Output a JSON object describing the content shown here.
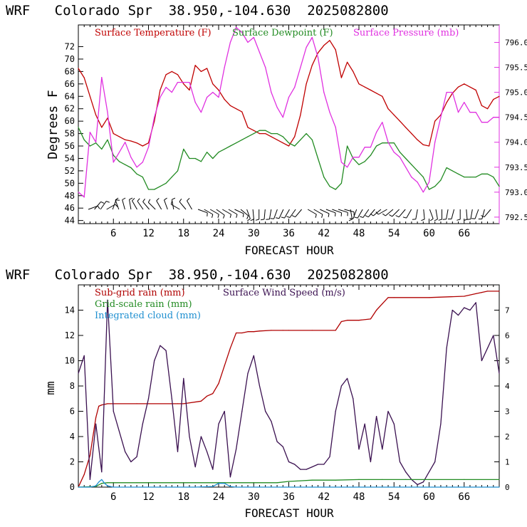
{
  "colors": {
    "temperature": "#c00000",
    "dewpoint": "#228b22",
    "pressure": "#e030e0",
    "subgrid_rain": "#b00000",
    "gridscale_rain": "#228b22",
    "cloud": "#1e8fd0",
    "wind_speed": "#3a1050",
    "axis": "#000000"
  },
  "chart_data": [
    {
      "type": "line",
      "title": "WRF   Colorado Spr  38.950,-104.630  2025082800",
      "xlabel": "FORECAST HOUR",
      "ylabel": "Degrees F",
      "xlim": [
        0,
        72
      ],
      "ylim": [
        43.5,
        75.5
      ],
      "y2lim": [
        792.37,
        796.35
      ],
      "x_ticks": [
        6,
        12,
        18,
        24,
        30,
        36,
        42,
        48,
        54,
        60,
        66
      ],
      "x_tick_labels": [
        "6",
        "12",
        "18",
        "24",
        "30",
        "36",
        "42",
        "48",
        "54",
        "60",
        "66"
      ],
      "y_ticks": [
        44,
        46,
        48,
        50,
        52,
        54,
        56,
        58,
        60,
        62,
        64,
        66,
        68,
        70,
        72
      ],
      "y_tick_labels": [
        "44",
        "46",
        "48",
        "50",
        "52",
        "54",
        "56",
        "58",
        "60",
        "62",
        "64",
        "66",
        "68",
        "70",
        "72"
      ],
      "y2_ticks": [
        792.5,
        793.0,
        793.5,
        794.0,
        794.5,
        795.0,
        795.5,
        796.0
      ],
      "y2_tick_labels": [
        "792.5",
        "793.0",
        "793.5",
        "794.0",
        "794.5",
        "795.0",
        "795.5",
        "796.0"
      ],
      "legend": [
        "Surface Temperature (F)",
        "Surface Dewpoint (F)",
        "Surface Pressure (mb)"
      ],
      "series": [
        {
          "name": "Surface Temperature (F)",
          "axis": "left",
          "x": [
            0,
            1,
            2,
            3,
            4,
            5,
            6,
            7,
            8,
            9,
            10,
            11,
            12,
            13,
            14,
            15,
            16,
            17,
            18,
            19,
            20,
            21,
            22,
            23,
            24,
            25,
            26,
            27,
            28,
            29,
            30,
            31,
            32,
            33,
            34,
            35,
            36,
            37,
            38,
            39,
            40,
            41,
            42,
            43,
            44,
            45,
            46,
            47,
            48,
            49,
            50,
            51,
            52,
            53,
            54,
            55,
            56,
            57,
            58,
            59,
            60,
            61,
            62,
            63,
            64,
            65,
            66,
            67,
            68,
            69,
            70,
            71,
            72
          ],
          "values": [
            68.5,
            67,
            64,
            61,
            59,
            60.5,
            58,
            57.5,
            57,
            56.8,
            56.5,
            56,
            56.5,
            60,
            65,
            67.5,
            68,
            67.5,
            66,
            65,
            69,
            68,
            68.5,
            66,
            65,
            63.5,
            62.5,
            62,
            61.5,
            59,
            58.5,
            58,
            58,
            57.5,
            57,
            56.5,
            56,
            57.5,
            61,
            66,
            69,
            71,
            72.2,
            73,
            71.5,
            67,
            69.5,
            68,
            66,
            65.5,
            65,
            64.5,
            64,
            62,
            61,
            60,
            59,
            58,
            57,
            56.2,
            56,
            60,
            61,
            63,
            64.5,
            65.5,
            66,
            65.5,
            65,
            62.5,
            62,
            63.5,
            64
          ]
        },
        {
          "name": "Surface Dewpoint (F)",
          "axis": "left",
          "x": [
            0,
            1,
            2,
            3,
            4,
            5,
            6,
            7,
            8,
            9,
            10,
            11,
            12,
            13,
            14,
            15,
            16,
            17,
            18,
            19,
            20,
            21,
            22,
            23,
            24,
            25,
            26,
            27,
            28,
            29,
            30,
            31,
            32,
            33,
            34,
            35,
            36,
            37,
            38,
            39,
            40,
            41,
            42,
            43,
            44,
            45,
            46,
            47,
            48,
            49,
            50,
            51,
            52,
            53,
            54,
            55,
            56,
            57,
            58,
            59,
            60,
            61,
            62,
            63,
            64,
            65,
            66,
            67,
            68,
            69,
            70,
            71,
            72
          ],
          "values": [
            59,
            57,
            56,
            56.5,
            55.5,
            57,
            54.5,
            53.5,
            53,
            52.5,
            51.5,
            51,
            49,
            49,
            49.5,
            50,
            51,
            52,
            55.5,
            54,
            54,
            53.5,
            55,
            54,
            55,
            55.5,
            56,
            56.5,
            57,
            57.5,
            58,
            58.5,
            58.5,
            58,
            58,
            57.5,
            56.5,
            56,
            57,
            58,
            57,
            54,
            51,
            49.5,
            49,
            50,
            56,
            54,
            53,
            53.5,
            54.5,
            56,
            56.5,
            56.5,
            56.5,
            55,
            54,
            53,
            52,
            51,
            49,
            49.5,
            50.5,
            52.5,
            52,
            51.5,
            51,
            51,
            51,
            51.5,
            51.5,
            51,
            49.5
          ]
        },
        {
          "name": "Surface Pressure (mb)",
          "axis": "right",
          "x": [
            0,
            1,
            2,
            3,
            4,
            5,
            6,
            7,
            8,
            9,
            10,
            11,
            12,
            13,
            14,
            15,
            16,
            17,
            18,
            19,
            20,
            21,
            22,
            23,
            24,
            25,
            26,
            27,
            28,
            29,
            30,
            31,
            32,
            33,
            34,
            35,
            36,
            37,
            38,
            39,
            40,
            41,
            42,
            43,
            44,
            45,
            46,
            47,
            48,
            49,
            50,
            51,
            52,
            53,
            54,
            55,
            56,
            57,
            58,
            59,
            60,
            61,
            62,
            63,
            64,
            65,
            66,
            67,
            68,
            69,
            70,
            71,
            72
          ],
          "values": [
            793.0,
            792.9,
            794.2,
            794.0,
            795.3,
            794.6,
            793.6,
            793.8,
            794.0,
            793.7,
            793.5,
            793.6,
            793.9,
            794.5,
            794.9,
            795.1,
            795.0,
            795.2,
            795.2,
            795.2,
            794.8,
            794.6,
            794.9,
            795.0,
            794.9,
            795.5,
            796.0,
            796.3,
            796.2,
            796.0,
            796.1,
            795.8,
            795.5,
            795.0,
            794.7,
            794.5,
            794.9,
            795.1,
            795.5,
            795.9,
            796.1,
            795.7,
            795.0,
            794.6,
            794.3,
            793.6,
            793.5,
            793.7,
            793.7,
            793.9,
            793.9,
            794.2,
            794.4,
            794.0,
            793.8,
            793.7,
            793.5,
            793.3,
            793.2,
            793.0,
            793.2,
            794.0,
            794.5,
            795.0,
            795.0,
            794.6,
            794.8,
            794.6,
            794.6,
            794.4,
            794.4,
            794.5,
            794.5
          ]
        }
      ],
      "wind_barb_direction_deg": [
        70,
        40,
        35,
        60,
        20,
        340,
        345,
        350,
        330,
        325,
        320,
        315,
        330,
        340,
        350,
        300,
        320,
        330,
        110,
        120,
        120,
        125,
        120,
        120,
        115,
        130,
        160,
        175,
        180,
        185,
        190,
        200,
        205,
        210,
        215,
        220,
        120,
        120,
        115,
        110,
        110,
        108,
        105,
        170,
        200,
        210,
        215,
        220,
        230,
        240,
        230,
        225,
        220,
        210,
        190,
        175,
        160,
        170,
        180,
        190,
        195,
        180,
        175,
        190,
        200,
        195,
        220
      ]
    },
    {
      "type": "line",
      "title": "WRF   Colorado Spr  38.950,-104.630  2025082800",
      "xlabel": "FORECAST HOUR",
      "ylabel": "mm",
      "xlim": [
        0,
        72
      ],
      "ylim": [
        0,
        16
      ],
      "y2lim": [
        0,
        8
      ],
      "x_ticks": [
        6,
        12,
        18,
        24,
        30,
        36,
        42,
        48,
        54,
        60,
        66
      ],
      "x_tick_labels": [
        "6",
        "12",
        "18",
        "24",
        "30",
        "36",
        "42",
        "48",
        "54",
        "60",
        "66"
      ],
      "y_ticks": [
        0,
        2,
        4,
        6,
        8,
        10,
        12,
        14
      ],
      "y_tick_labels": [
        "0",
        "2",
        "4",
        "6",
        "8",
        "10",
        "12",
        "14"
      ],
      "y2_ticks": [
        0,
        1,
        2,
        3,
        4,
        5,
        6,
        7
      ],
      "y2_tick_labels": [
        "0",
        "1",
        "2",
        "3",
        "4",
        "5",
        "6",
        "7"
      ],
      "legend": [
        "Sub-grid rain (mm)",
        "Surface Wind Speed (m/s)",
        "Grid-scale rain (mm)",
        "Integrated cloud (mm)"
      ],
      "series": [
        {
          "name": "Sub-grid rain (mm)",
          "axis": "left",
          "x": [
            0,
            1,
            2,
            3,
            3.5,
            4,
            5,
            10,
            17,
            18,
            21,
            22,
            23,
            24,
            25,
            26,
            27,
            28,
            29,
            30,
            31,
            33,
            35,
            36,
            40,
            44,
            45,
            46,
            48,
            50,
            51,
            52,
            53,
            54,
            60,
            66,
            68,
            69,
            70,
            72
          ],
          "values": [
            0,
            1,
            2.5,
            5.5,
            6.4,
            6.5,
            6.6,
            6.6,
            6.6,
            6.6,
            6.8,
            7.2,
            7.4,
            8.2,
            9.6,
            11.0,
            12.2,
            12.2,
            12.3,
            12.3,
            12.35,
            12.4,
            12.4,
            12.4,
            12.4,
            12.4,
            13.1,
            13.2,
            13.2,
            13.3,
            14.0,
            14.5,
            15.0,
            15.0,
            15.0,
            15.1,
            15.3,
            15.4,
            15.5,
            15.5
          ]
        },
        {
          "name": "Surface Wind Speed (m/s)",
          "axis": "right",
          "x": [
            0,
            1,
            2,
            3,
            4,
            5,
            6,
            7,
            8,
            9,
            10,
            11,
            12,
            13,
            14,
            15,
            16,
            17,
            18,
            19,
            20,
            21,
            22,
            23,
            24,
            25,
            26,
            27,
            28,
            29,
            30,
            31,
            32,
            33,
            34,
            35,
            36,
            37,
            38,
            39,
            40,
            41,
            42,
            43,
            44,
            45,
            46,
            47,
            48,
            49,
            50,
            51,
            52,
            53,
            54,
            55,
            56,
            57,
            58,
            59,
            60,
            61,
            62,
            63,
            64,
            65,
            66,
            67,
            68,
            69,
            70,
            71,
            72
          ],
          "values": [
            4.5,
            5.2,
            0.3,
            2.5,
            0.6,
            7.4,
            3.0,
            2.2,
            1.4,
            1.0,
            1.2,
            2.5,
            3.5,
            5.0,
            5.6,
            5.4,
            3.5,
            1.4,
            4.3,
            2.0,
            0.8,
            2.0,
            1.4,
            0.7,
            2.5,
            3.0,
            0.4,
            1.5,
            3.0,
            4.5,
            5.2,
            4.0,
            3.0,
            2.6,
            1.8,
            1.6,
            1.0,
            0.9,
            0.7,
            0.7,
            0.8,
            0.9,
            0.9,
            1.2,
            3.0,
            4.0,
            4.3,
            3.5,
            1.5,
            2.5,
            1.0,
            2.8,
            1.5,
            3.0,
            2.5,
            1.0,
            0.6,
            0.3,
            0.1,
            0.2,
            0.6,
            1.0,
            2.5,
            5.5,
            7.0,
            6.8,
            7.1,
            7.0,
            7.3,
            5.0,
            5.5,
            6.0,
            4.5
          ]
        },
        {
          "name": "Grid-scale rain (mm)",
          "axis": "left",
          "x": [
            0,
            3,
            4,
            5,
            10,
            20,
            24,
            25,
            30,
            34,
            36,
            38,
            40,
            44,
            48,
            52,
            56,
            60,
            66,
            72
          ],
          "values": [
            0,
            0.05,
            0.3,
            0.35,
            0.35,
            0.35,
            0.35,
            0.35,
            0.35,
            0.35,
            0.45,
            0.5,
            0.55,
            0.55,
            0.6,
            0.6,
            0.6,
            0.6,
            0.6,
            0.6
          ]
        },
        {
          "name": "Integrated cloud (mm)",
          "axis": "left",
          "x": [
            0,
            2,
            3,
            3.5,
            4,
            4.5,
            5,
            6,
            20,
            23,
            24,
            25,
            26,
            27,
            40,
            60,
            72
          ],
          "values": [
            0,
            0,
            0.1,
            0.4,
            0.6,
            0.3,
            0.1,
            0,
            0,
            0.05,
            0.3,
            0.3,
            0.05,
            0,
            0,
            0,
            0
          ]
        }
      ]
    }
  ]
}
